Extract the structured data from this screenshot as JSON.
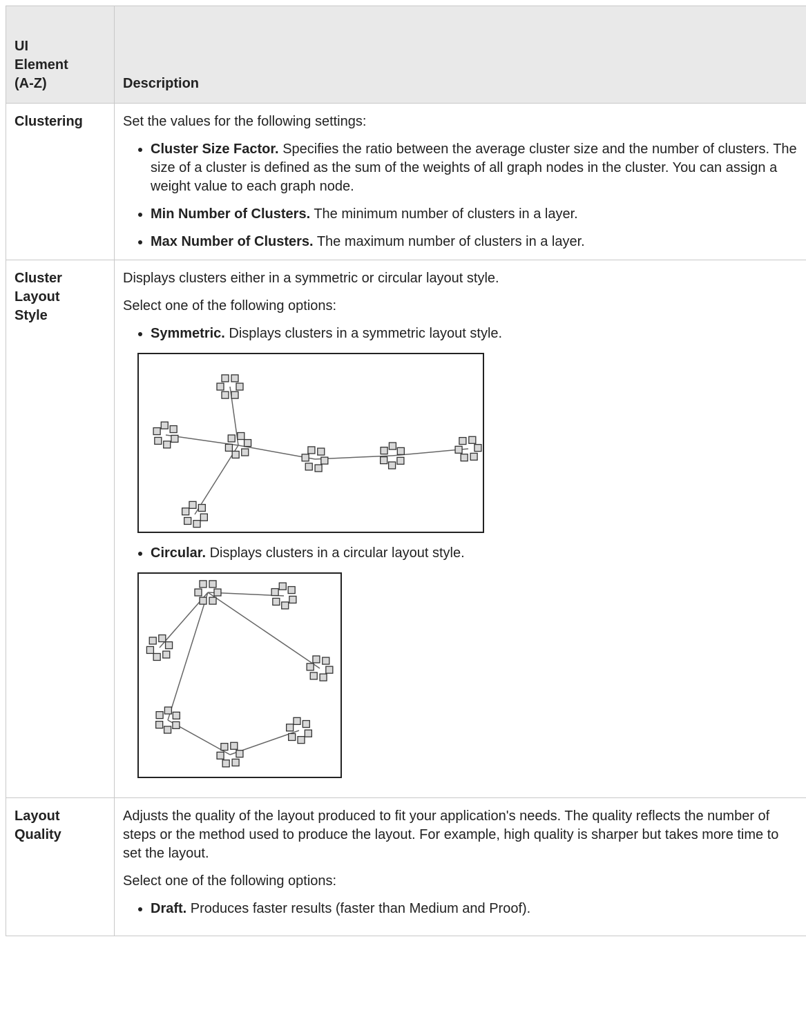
{
  "table": {
    "header": {
      "element": "UI Element (A-Z)",
      "description": "Description"
    },
    "rows": [
      {
        "element": "Clustering",
        "paragraphs": [
          "Set the values for the following settings:"
        ],
        "items": [
          {
            "term": "Cluster Size Factor.",
            "text": "Specifies the ratio between the average cluster size and the number of clusters. The size of a cluster is defined as the sum of the weights of all graph nodes in the cluster. You can assign a weight value to each graph node."
          },
          {
            "term": "Min Number of Clusters.",
            "text": "The minimum number of clusters in a layer."
          },
          {
            "term": "Max Number of Clusters.",
            "text": "The maximum number of clusters in a layer."
          }
        ]
      },
      {
        "element": "Cluster Layout Style",
        "paragraphs": [
          "Displays clusters either in a symmetric or circular layout style.",
          "Select one of the following options:"
        ],
        "items": [
          {
            "term": "Symmetric.",
            "text": "Displays clusters in a symmetric layout style."
          },
          {
            "term": "Circular.",
            "text": "Displays clusters in a circular layout style."
          }
        ]
      },
      {
        "element": "Layout Quality",
        "paragraphs": [
          "Adjusts the quality of the layout produced to fit your application's needs. The quality reflects the number of steps or the method used to produce the layout. For example, high quality is sharper but takes more time to set the layout.",
          "Select one of the following options:"
        ],
        "items": [
          {
            "term": "Draft.",
            "text": "Produces faster results (faster than Medium and Proof)."
          }
        ]
      }
    ]
  }
}
